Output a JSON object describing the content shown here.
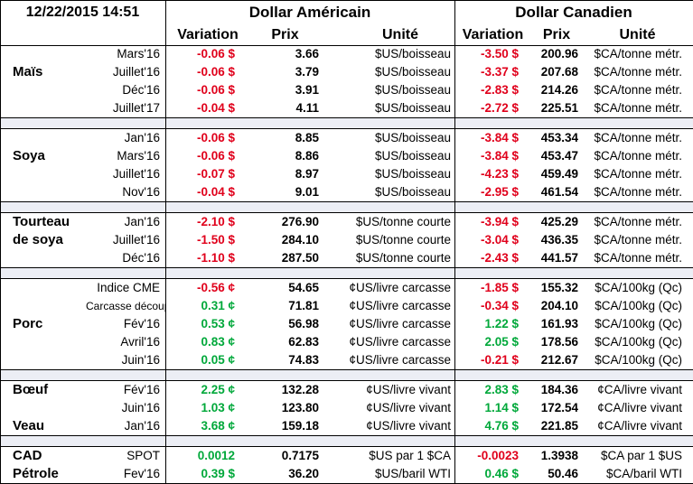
{
  "header": {
    "timestamp": "12/22/2015 14:51",
    "usd_title": "Dollar Américain",
    "cad_title": "Dollar Canadien",
    "col_variation": "Variation",
    "col_prix": "Prix",
    "col_unite": "Unité"
  },
  "sections": [
    {
      "category": "Maïs",
      "rows": [
        {
          "period": "Mars'16",
          "var": "-0.06 $",
          "price": "3.66",
          "unit": "$US/boisseau",
          "var2": "-3.50 $",
          "price2": "200.96",
          "unit2": "$CA/tonne métr."
        },
        {
          "period": "Juillet'16",
          "var": "-0.06 $",
          "price": "3.79",
          "unit": "$US/boisseau",
          "var2": "-3.37 $",
          "price2": "207.68",
          "unit2": "$CA/tonne métr."
        },
        {
          "period": "Déc'16",
          "var": "-0.06 $",
          "price": "3.91",
          "unit": "$US/boisseau",
          "var2": "-2.83 $",
          "price2": "214.26",
          "unit2": "$CA/tonne métr."
        },
        {
          "period": "Juillet'17",
          "var": "-0.04 $",
          "price": "4.11",
          "unit": "$US/boisseau",
          "var2": "-2.72 $",
          "price2": "225.51",
          "unit2": "$CA/tonne métr."
        }
      ]
    },
    {
      "category": "Soya",
      "rows": [
        {
          "period": "Jan'16",
          "var": "-0.06 $",
          "price": "8.85",
          "unit": "$US/boisseau",
          "var2": "-3.84 $",
          "price2": "453.34",
          "unit2": "$CA/tonne métr."
        },
        {
          "period": "Mars'16",
          "var": "-0.06 $",
          "price": "8.86",
          "unit": "$US/boisseau",
          "var2": "-3.84 $",
          "price2": "453.47",
          "unit2": "$CA/tonne métr."
        },
        {
          "period": "Juillet'16",
          "var": "-0.07 $",
          "price": "8.97",
          "unit": "$US/boisseau",
          "var2": "-4.23 $",
          "price2": "459.49",
          "unit2": "$CA/tonne métr."
        },
        {
          "period": "Nov'16",
          "var": "-0.04 $",
          "price": "9.01",
          "unit": "$US/boisseau",
          "var2": "-2.95 $",
          "price2": "461.54",
          "unit2": "$CA/tonne métr."
        }
      ]
    },
    {
      "category": "Tourteau",
      "category2": "de soya",
      "rows": [
        {
          "period": "Jan'16",
          "var": "-2.10 $",
          "price": "276.90",
          "unit": "$US/tonne courte",
          "var2": "-3.94 $",
          "price2": "425.29",
          "unit2": "$CA/tonne métr."
        },
        {
          "period": "Juillet'16",
          "var": "-1.50 $",
          "price": "284.10",
          "unit": "$US/tonne courte",
          "var2": "-3.04 $",
          "price2": "436.35",
          "unit2": "$CA/tonne métr."
        },
        {
          "period": "Déc'16",
          "var": "-1.10 $",
          "price": "287.50",
          "unit": "$US/tonne courte",
          "var2": "-2.43 $",
          "price2": "441.57",
          "unit2": "$CA/tonne métr."
        }
      ]
    },
    {
      "category": "Porc",
      "rows": [
        {
          "period": "Indice CME",
          "var": "-0.56 ¢",
          "price": "54.65",
          "unit": "¢US/livre carcasse",
          "var2": "-1.85 $",
          "price2": "155.32",
          "unit2": "$CA/100kg (Qc)"
        },
        {
          "period": "Carcasse découpée",
          "var": "0.31 ¢",
          "price": "71.81",
          "unit": "¢US/livre carcasse",
          "var2": "-0.34 $",
          "price2": "204.10",
          "unit2": "$CA/100kg (Qc)"
        },
        {
          "period": "Fév'16",
          "var": "0.53 ¢",
          "price": "56.98",
          "unit": "¢US/livre carcasse",
          "var2": "1.22 $",
          "price2": "161.93",
          "unit2": "$CA/100kg (Qc)"
        },
        {
          "period": "Avril'16",
          "var": "0.83 ¢",
          "price": "62.83",
          "unit": "¢US/livre carcasse",
          "var2": "2.05 $",
          "price2": "178.56",
          "unit2": "$CA/100kg (Qc)"
        },
        {
          "period": "Juin'16",
          "var": "0.05 ¢",
          "price": "74.83",
          "unit": "¢US/livre carcasse",
          "var2": "-0.21 $",
          "price2": "212.67",
          "unit2": "$CA/100kg (Qc)"
        }
      ]
    },
    {
      "category": "Bœuf",
      "rows": [
        {
          "period": "Fév'16",
          "var": "2.25 ¢",
          "price": "132.28",
          "unit": "¢US/livre vivant",
          "var2": "2.83 $",
          "price2": "184.36",
          "unit2": "¢CA/livre vivant"
        },
        {
          "period": "Juin'16",
          "var": "1.03 ¢",
          "price": "123.80",
          "unit": "¢US/livre vivant",
          "var2": "1.14 $",
          "price2": "172.54",
          "unit2": "¢CA/livre vivant"
        },
        {
          "category": "Veau",
          "period": "Jan'16",
          "var": "3.68 ¢",
          "price": "159.18",
          "unit": "¢US/livre vivant",
          "var2": "4.76 $",
          "price2": "221.85",
          "unit2": "¢CA/livre vivant"
        }
      ]
    },
    {
      "category": "CAD",
      "rows": [
        {
          "period": "SPOT",
          "var": "0.0012",
          "price": "0.7175",
          "unit": "$US par 1 $CA",
          "var2": "-0.0023",
          "price2": "1.3938",
          "unit2": "$CA par 1 $US"
        },
        {
          "category": "Pétrole",
          "period": "Fev'16",
          "var": "0.39 $",
          "price": "36.20",
          "unit": "$US/baril WTI",
          "var2": "0.46 $",
          "price2": "50.46",
          "unit2": "$CA/baril WTI"
        }
      ]
    }
  ],
  "colors": {
    "negative": "#e0001b",
    "positive": "#00a83a",
    "separator": "#eceef5"
  }
}
